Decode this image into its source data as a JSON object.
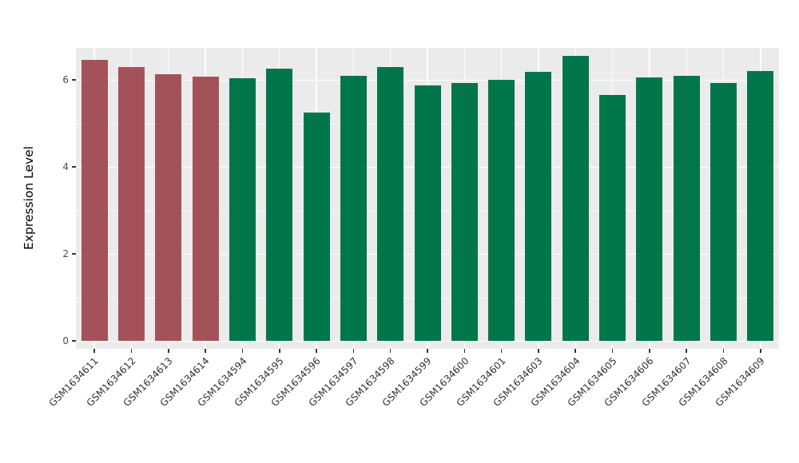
{
  "chart_data": {
    "type": "bar",
    "title": "",
    "xlabel": "",
    "ylabel": "Expression Level",
    "ylim": [
      0,
      6.73
    ],
    "yticks": [
      0,
      2,
      4,
      6
    ],
    "grid": {
      "minor_y": [
        1,
        3,
        5
      ],
      "visible": true
    },
    "legend_position": "none",
    "categories": [
      "GSM1634611",
      "GSM1634612",
      "GSM1634613",
      "GSM1634614",
      "GSM1634594",
      "GSM1634595",
      "GSM1634596",
      "GSM1634597",
      "GSM1634598",
      "GSM1634599",
      "GSM1634600",
      "GSM1634601",
      "GSM1634603",
      "GSM1634604",
      "GSM1634605",
      "GSM1634606",
      "GSM1634607",
      "GSM1634608",
      "GSM1634609"
    ],
    "values": [
      6.45,
      6.3,
      6.12,
      6.08,
      6.03,
      6.25,
      5.25,
      6.1,
      6.3,
      5.88,
      5.92,
      6.0,
      6.18,
      6.55,
      5.65,
      6.05,
      6.1,
      5.92,
      6.2
    ],
    "bar_colors": [
      "#A4525A",
      "#A4525A",
      "#A4525A",
      "#A4525A",
      "#00764A",
      "#00764A",
      "#00764A",
      "#00764A",
      "#00764A",
      "#00764A",
      "#00764A",
      "#00764A",
      "#00764A",
      "#00764A",
      "#00764A",
      "#00764A",
      "#00764A",
      "#00764A",
      "#00764A"
    ],
    "colors": {
      "group_highlight": "#A4525A",
      "group_normal": "#00764A",
      "panel_background": "#EBEBEB",
      "gridline": "#FFFFFF"
    }
  }
}
